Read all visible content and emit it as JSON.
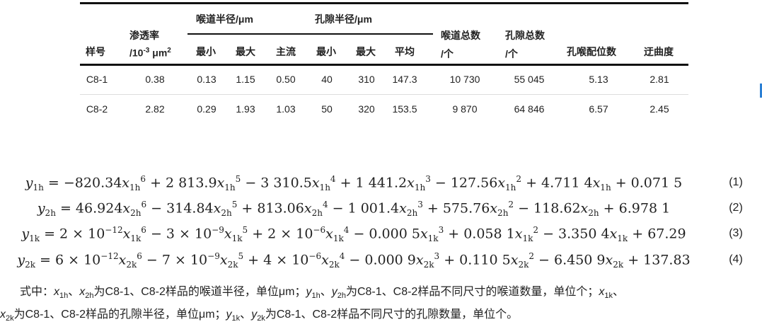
{
  "table": {
    "group_headers": [
      "喉道半径/μm",
      "孔隙半径/μm"
    ],
    "headers": {
      "sample": "样号",
      "perm_line1": "渗透率",
      "perm_line2": "/10",
      "perm_exp": "-3",
      "perm_unit": " μm",
      "perm_unit_exp": "2",
      "throat_min": "最小",
      "throat_max": "最大",
      "throat_main": "主流",
      "pore_min": "最小",
      "pore_max": "最大",
      "pore_avg": "平均",
      "throat_total_1": "喉道总数",
      "throat_total_2": "/个",
      "pore_total_1": "孔隙总数",
      "pore_total_2": "/个",
      "coordination": "孔喉配位数",
      "tortuosity": "迂曲度"
    },
    "rows": [
      [
        "C8-1",
        "0.38",
        "0.13",
        "1.15",
        "0.50",
        "40",
        "310",
        "147.3",
        "10 730",
        "55 045",
        "5.13",
        "2.81"
      ],
      [
        "C8-2",
        "2.82",
        "0.29",
        "1.93",
        "1.03",
        "50",
        "320",
        "153.5",
        "9 870",
        "64 846",
        "6.57",
        "2.45"
      ]
    ]
  },
  "equations": [
    {
      "tex": "y_{1h} = −820.34x_{1h}^{6} + 2 813.9x_{1h}^{5} − 3 310.5x_{1h}^{4} + 1 441.2x_{1h}^{3} − 127.56x_{1h}^{2} + 4.711 4x_{1h} + 0.071 5",
      "num": "(1)"
    },
    {
      "tex": "y_{2h} = 46.924x_{2h}^{6} − 314.84x_{2h}^{5} + 813.06x_{2h}^{4} − 1 001.4x_{2h}^{3} + 575.76x_{2h}^{2} − 118.62x_{2h} + 6.978 1",
      "num": "(2)"
    },
    {
      "tex": "y_{1k} = 2 × 10^{−12}x_{1k}^{6} − 3 × 10^{−9}x_{1k}^{5} + 2 × 10^{−6}x_{1k}^{4} − 0.000 5x_{1k}^{3} + 0.058 1x_{1k}^{2} − 3.350 4x_{1k} + 67.29",
      "num": "(3)"
    },
    {
      "tex": "y_{2k} = 6 × 10^{−12}x_{2k}^{6} − 7 × 10^{−9}x_{2k}^{5} + 4 × 10^{−6}x_{2k}^{4} − 0.000 9x_{2k}^{3} + 0.110 5x_{2k}^{2} − 6.450 9x_{2k} + 137.83",
      "num": "(4)"
    }
  ],
  "note": {
    "line1": "式中：x_{1h}、x_{2h}为C8-1、C8-2样品的喉道半径，单位μm；y_{1h}、y_{2h}为C8-1、C8-2样品不同尺寸的喉道数量，单位个；x_{1k}、",
    "line2": "x_{2k}为C8-1、C8-2样品的孔隙半径，单位μm；y_{1k}、y_{2k}为C8-1、C8-2样品不同尺寸的孔隙数量，单位个。"
  }
}
